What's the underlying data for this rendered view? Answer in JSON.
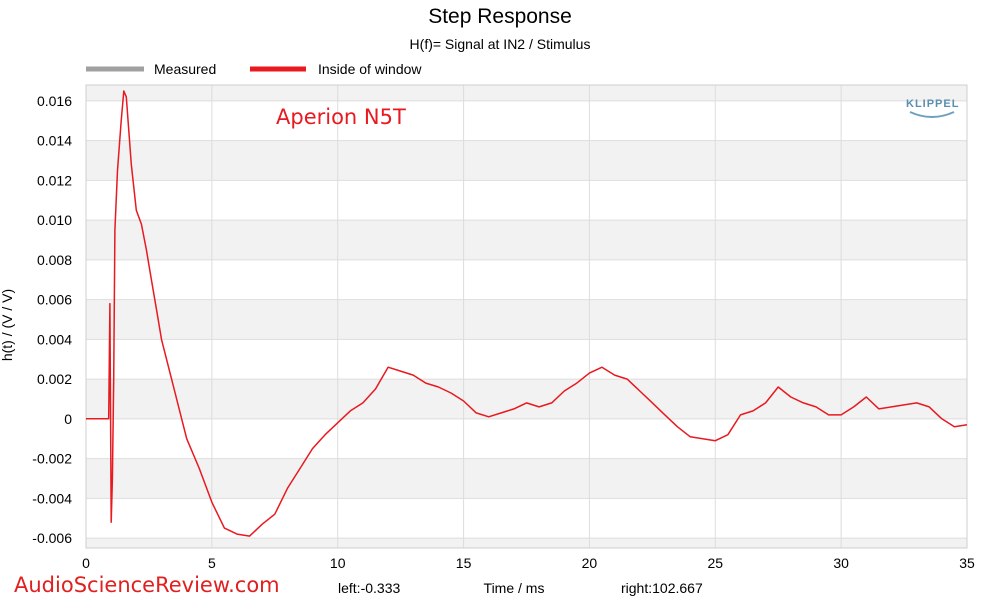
{
  "chart_data": {
    "type": "line",
    "title": "Step Response",
    "subtitle": "H(f)= Signal at IN2 / Stimulus",
    "xlabel": "Time / ms",
    "ylabel": "h(t) / (V / V)",
    "xlim": [
      0,
      35
    ],
    "ylim": [
      -0.0065,
      0.0168
    ],
    "x_ticks": [
      0,
      5,
      10,
      15,
      20,
      25,
      30,
      35
    ],
    "y_ticks": [
      -0.006,
      -0.004,
      -0.002,
      0,
      0.002,
      0.004,
      0.006,
      0.008,
      0.01,
      0.012,
      0.014,
      0.016
    ],
    "y_tick_labels": [
      "-0.006",
      "-0.004",
      "-0.002",
      "0",
      "0.002",
      "0.004",
      "0.006",
      "0.008",
      "0.010",
      "0.012",
      "0.014",
      "0.016"
    ],
    "grid": true,
    "legend_position": "top-left",
    "series": [
      {
        "name": "Measured",
        "color": "#a0a0a0",
        "x": [],
        "y": []
      },
      {
        "name": "Inside of window",
        "color": "#e8191f",
        "x": [
          0,
          0.5,
          0.9,
          0.95,
          1.0,
          1.05,
          1.1,
          1.15,
          1.25,
          1.4,
          1.5,
          1.6,
          1.7,
          1.8,
          2.0,
          2.2,
          2.4,
          2.6,
          2.8,
          3.0,
          3.5,
          4.0,
          4.5,
          5.0,
          5.5,
          6.0,
          6.5,
          7.0,
          7.5,
          8.0,
          8.5,
          9.0,
          9.5,
          10.0,
          10.5,
          11.0,
          11.5,
          12.0,
          12.5,
          13.0,
          13.5,
          14.0,
          14.5,
          15.0,
          15.5,
          16.0,
          16.5,
          17.0,
          17.5,
          18.0,
          18.5,
          19.0,
          19.5,
          20.0,
          20.5,
          21.0,
          21.5,
          22.0,
          22.5,
          23.0,
          23.5,
          24.0,
          24.5,
          25.0,
          25.5,
          26.0,
          26.5,
          27.0,
          27.5,
          28.0,
          28.5,
          29.0,
          29.5,
          30.0,
          30.5,
          31.0,
          31.5,
          32.0,
          32.5,
          33.0,
          33.5,
          34.0,
          34.5,
          35.0
        ],
        "y": [
          0,
          0,
          0,
          0.0058,
          -0.0052,
          -0.003,
          0.002,
          0.0095,
          0.0125,
          0.015,
          0.0165,
          0.0162,
          0.0145,
          0.0128,
          0.0105,
          0.0098,
          0.0085,
          0.007,
          0.0055,
          0.004,
          0.0015,
          -0.001,
          -0.0025,
          -0.0042,
          -0.0055,
          -0.0058,
          -0.0059,
          -0.0053,
          -0.0048,
          -0.0035,
          -0.0025,
          -0.0015,
          -0.0008,
          -0.0002,
          0.0004,
          0.0008,
          0.0015,
          0.0026,
          0.0024,
          0.0022,
          0.0018,
          0.0016,
          0.0013,
          0.0009,
          0.0003,
          0.0001,
          0.0003,
          0.0005,
          0.0008,
          0.0006,
          0.0008,
          0.0014,
          0.0018,
          0.0023,
          0.0026,
          0.0022,
          0.002,
          0.0014,
          0.0008,
          0.0002,
          -0.0004,
          -0.0009,
          -0.001,
          -0.0011,
          -0.0008,
          0.0002,
          0.0004,
          0.0008,
          0.0016,
          0.0011,
          0.0008,
          0.0006,
          0.0002,
          0.0002,
          0.0006,
          0.0011,
          0.0005,
          0.0006,
          0.0007,
          0.0008,
          0.0006,
          0.0,
          -0.0004,
          -0.0003
        ]
      }
    ]
  },
  "annotation": "Aperion N5T",
  "footer": {
    "left": "left:-0.333",
    "right": "right:102.667"
  },
  "watermark": "AudioScienceReview.com",
  "logo": "KLIPPEL"
}
